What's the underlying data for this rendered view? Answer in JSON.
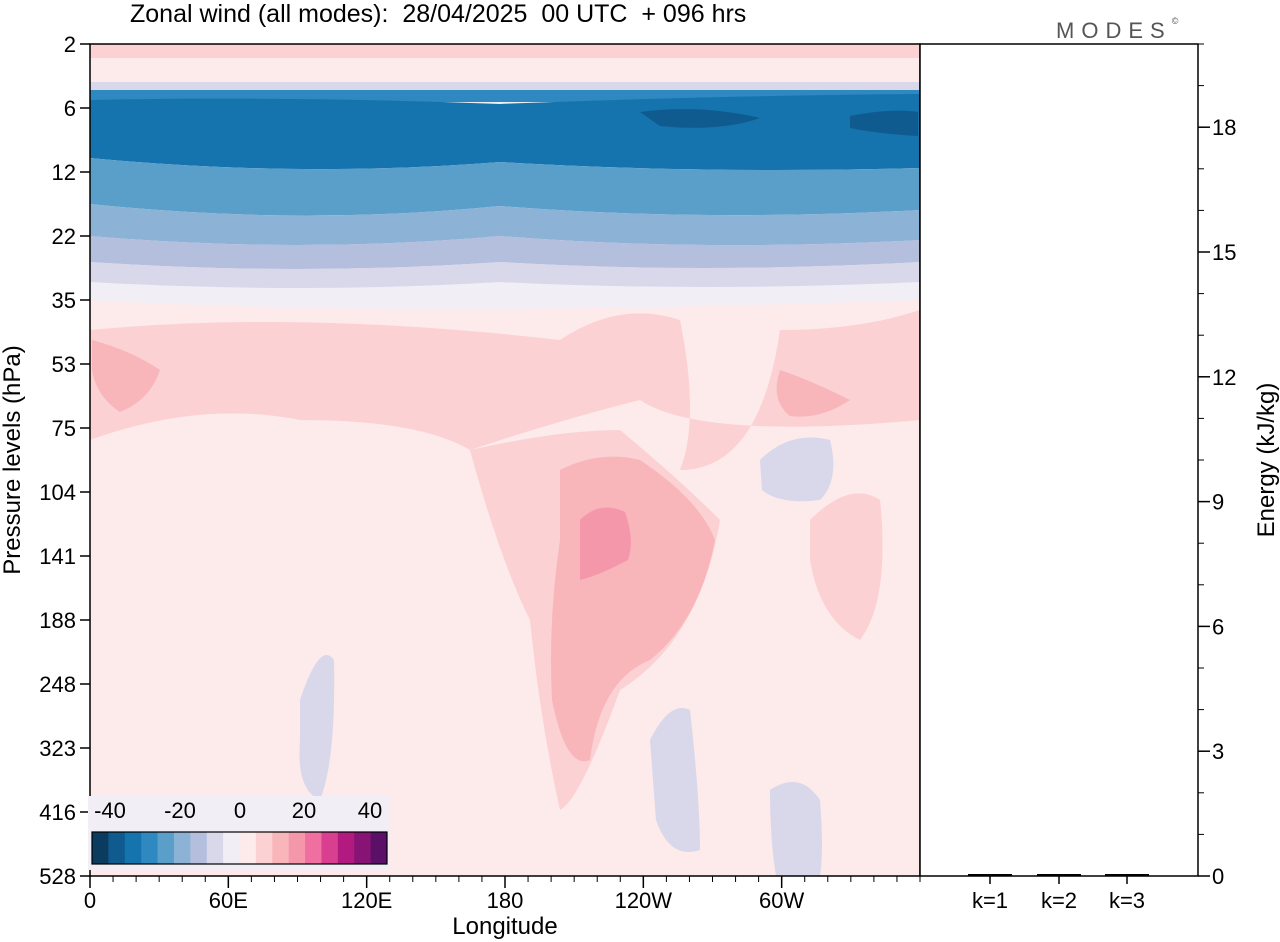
{
  "chart_data": {
    "type": "heatmap",
    "title": "Zonal wind (all modes):  28/04/2025  00 UTC  + 096 hrs",
    "xlabel": "Longitude",
    "ylabel": "Pressure levels (hPa)",
    "x_ticks": [
      "0",
      "60E",
      "120E",
      "180",
      "120W",
      "60W"
    ],
    "y_ticks": [
      "2",
      "6",
      "12",
      "22",
      "35",
      "53",
      "75",
      "104",
      "141",
      "188",
      "248",
      "323",
      "416",
      "528"
    ],
    "colorbar": {
      "ticks": [
        "-40",
        "-20",
        "0",
        "20",
        "40"
      ],
      "colors": [
        "#0b3b5e",
        "#0f5a8e",
        "#1573ad",
        "#2f88bf",
        "#5a9fca",
        "#8cb3d6",
        "#b4bedd",
        "#d8d8ea",
        "#f2eef6",
        "#fdeaea",
        "#fbd1d3",
        "#f8b6bb",
        "#f597aa",
        "#ef6fa1",
        "#d83f8f",
        "#b21a80",
        "#871475",
        "#5c0f66"
      ]
    },
    "field_summary": [
      {
        "levels": "2-3 hPa",
        "wind_ms": 15
      },
      {
        "levels": "4 hPa",
        "wind_ms": 0
      },
      {
        "levels": "6-10 hPa",
        "wind_ms": -35
      },
      {
        "levels": "12-18 hPa",
        "wind_ms": -25
      },
      {
        "levels": "22-28 hPa",
        "wind_ms": -10
      },
      {
        "levels": "35-75 hPa",
        "wind_ms": 10
      },
      {
        "levels": "104-323 hPa near 120W",
        "wind_ms": 20
      },
      {
        "levels": "323-528 hPa",
        "wind_ms": 0
      }
    ],
    "energy_panel": {
      "ylabel": "Energy (kJ/kg)",
      "y_ticks": [
        "0",
        "3",
        "6",
        "9",
        "12",
        "15",
        "18"
      ],
      "ylim": [
        0,
        20
      ],
      "categories": [
        "k=1",
        "k=2",
        "k=3"
      ],
      "values": [
        0.02,
        0.01,
        0.01
      ]
    }
  },
  "logo": {
    "text": "MODES",
    "mark": "©"
  }
}
